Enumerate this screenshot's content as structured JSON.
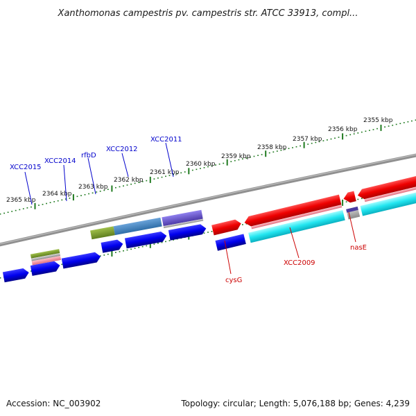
{
  "title": "Xanthomonas campestris pv. campestris str. ATCC 33913, compl...",
  "footer": {
    "accession": "Accession: NC_003902",
    "summary": "Topology: circular; Length: 5,076,188 bp; Genes: 4,239"
  },
  "colors": {
    "backbone": "#808080",
    "tick": "#1f7a1f",
    "label_upper": "#0000cc",
    "label_lower": "#cc0000"
  },
  "scale_labels": [
    "2365 kbp",
    "2364 kbp",
    "2363 kbp",
    "2362 kbp",
    "2361 kbp",
    "2360 kbp",
    "2359 kbp",
    "2358 kbp",
    "2357 kbp",
    "2356 kbp",
    "2355 kbp"
  ],
  "gene_labels_upper": [
    "XCC2015",
    "XCC2014",
    "rfbD",
    "XCC2012",
    "XCC2011"
  ],
  "gene_labels_lower": [
    "cysG",
    "XCC2009",
    "nasE"
  ]
}
